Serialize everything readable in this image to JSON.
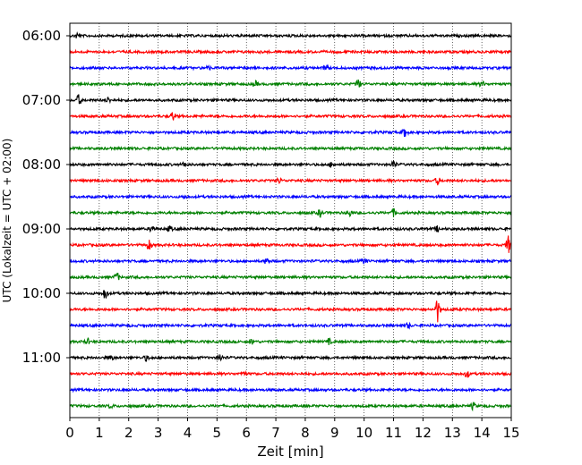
{
  "chart_data": {
    "type": "line",
    "title": "",
    "xlabel": "Zeit  [min]",
    "ylabel": "UTC (Lokalzeit = UTC + 02:00)",
    "xlim": [
      0,
      15
    ],
    "x_ticks": [
      "0",
      "1",
      "2",
      "3",
      "4",
      "5",
      "6",
      "7",
      "8",
      "9",
      "10",
      "11",
      "12",
      "13",
      "14",
      "15"
    ],
    "y_ticks": [
      "06:00",
      "07:00",
      "08:00",
      "09:00",
      "10:00",
      "11:00"
    ],
    "grid": "vertical dotted",
    "legend": "none",
    "colors": [
      "#000000",
      "#ff0000",
      "#0000ff",
      "#008000"
    ],
    "series": [
      {
        "start": "06:00",
        "color": "#000000",
        "events": [
          [
            0.25,
            3
          ]
        ]
      },
      {
        "start": "06:15",
        "color": "#ff0000",
        "events": []
      },
      {
        "start": "06:30",
        "color": "#0000ff",
        "events": [
          [
            8.7,
            3
          ],
          [
            4.7,
            2
          ]
        ]
      },
      {
        "start": "06:45",
        "color": "#008000",
        "events": [
          [
            9.8,
            5
          ],
          [
            6.3,
            3
          ],
          [
            14.0,
            3
          ]
        ]
      },
      {
        "start": "07:00",
        "color": "#000000",
        "events": [
          [
            0.3,
            6
          ],
          [
            1.3,
            3
          ]
        ]
      },
      {
        "start": "07:15",
        "color": "#ff0000",
        "events": [
          [
            3.5,
            5
          ]
        ]
      },
      {
        "start": "07:30",
        "color": "#0000ff",
        "events": [
          [
            11.4,
            6
          ]
        ]
      },
      {
        "start": "07:45",
        "color": "#008000",
        "events": []
      },
      {
        "start": "08:00",
        "color": "#000000",
        "events": [
          [
            11.0,
            5
          ],
          [
            3.9,
            3
          ],
          [
            8.9,
            3
          ]
        ]
      },
      {
        "start": "08:15",
        "color": "#ff0000",
        "events": [
          [
            7.1,
            3
          ],
          [
            12.5,
            4
          ]
        ]
      },
      {
        "start": "08:30",
        "color": "#0000ff",
        "events": [
          [
            3.9,
            2
          ]
        ]
      },
      {
        "start": "08:45",
        "color": "#008000",
        "events": [
          [
            8.5,
            4
          ],
          [
            9.5,
            4
          ],
          [
            11.0,
            4
          ]
        ]
      },
      {
        "start": "09:00",
        "color": "#000000",
        "events": [
          [
            2.8,
            4
          ],
          [
            3.4,
            3
          ],
          [
            12.5,
            3
          ]
        ]
      },
      {
        "start": "09:15",
        "color": "#ff0000",
        "events": [
          [
            2.7,
            6
          ],
          [
            14.9,
            10
          ]
        ]
      },
      {
        "start": "09:30",
        "color": "#0000ff",
        "events": [
          [
            6.7,
            4
          ],
          [
            10.0,
            3
          ]
        ]
      },
      {
        "start": "09:45",
        "color": "#008000",
        "events": [
          [
            1.6,
            5
          ]
        ]
      },
      {
        "start": "10:00",
        "color": "#000000",
        "events": [
          [
            1.2,
            7
          ]
        ]
      },
      {
        "start": "10:15",
        "color": "#ff0000",
        "events": [
          [
            12.5,
            14
          ]
        ]
      },
      {
        "start": "10:30",
        "color": "#0000ff",
        "events": [
          [
            11.5,
            3
          ]
        ]
      },
      {
        "start": "10:45",
        "color": "#008000",
        "events": [
          [
            0.6,
            3
          ],
          [
            6.2,
            3
          ],
          [
            8.8,
            3
          ]
        ]
      },
      {
        "start": "11:00",
        "color": "#000000",
        "events": [
          [
            1.4,
            3
          ],
          [
            2.6,
            3
          ],
          [
            5.1,
            4
          ]
        ]
      },
      {
        "start": "11:15",
        "color": "#ff0000",
        "events": [
          [
            13.5,
            4
          ],
          [
            5.9,
            3
          ]
        ]
      },
      {
        "start": "11:30",
        "color": "#0000ff",
        "events": []
      },
      {
        "start": "11:45",
        "color": "#008000",
        "events": [
          [
            13.7,
            4
          ],
          [
            1.4,
            2
          ]
        ]
      }
    ]
  }
}
